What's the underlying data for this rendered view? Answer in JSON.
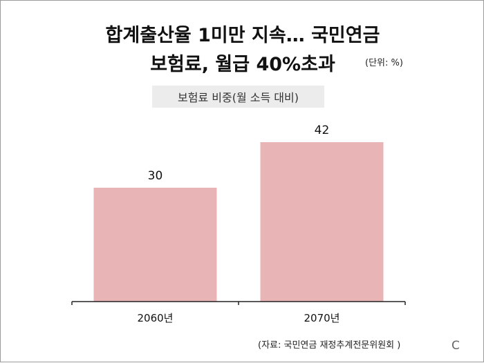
{
  "title_line1": "합계출산율 1미만 지속… 국민연금",
  "title_line2": "보험료, 월급 40%초과",
  "unit_label": "(단위: %)",
  "subtitle": "보험료 비중(월 소득 대비)",
  "source": "(자료: 국민연금 재정추계전문위원회 )",
  "logo": "C",
  "colors": {
    "bar": "#e8b4b6",
    "axis": "#222222",
    "text": "#111111"
  },
  "chart_data": {
    "type": "bar",
    "title": "합계출산율 1미만 지속… 국민연금 보험료, 월급 40%초과",
    "subtitle": "보험료 비중(월 소득 대비)",
    "unit": "%",
    "categories": [
      "2060년",
      "2070년"
    ],
    "values": [
      30,
      42
    ],
    "data_labels": [
      "30",
      "42"
    ],
    "xlabel": "",
    "ylabel": "",
    "ylim": [
      0,
      50
    ],
    "grid": false,
    "legend": "none"
  }
}
